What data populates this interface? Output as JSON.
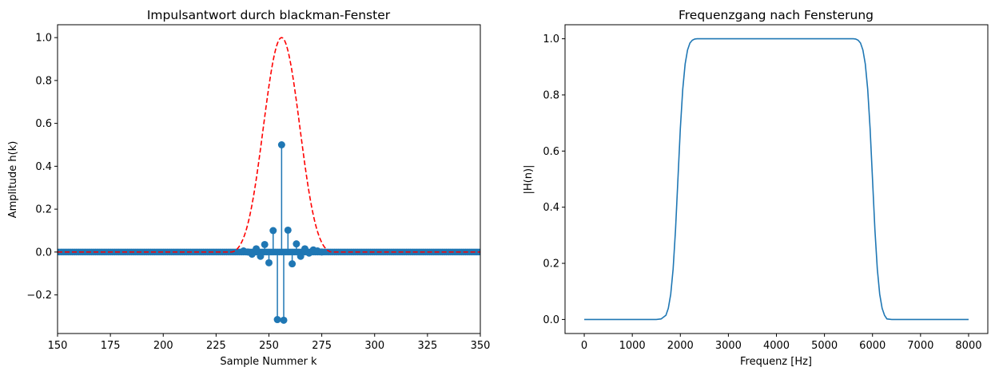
{
  "chart_data": [
    {
      "type": "stem",
      "title": "Impulsantwort durch blackman-Fenster",
      "xlabel": "Sample Nummer k",
      "ylabel": "Amplitude h(k)",
      "xlim": [
        150,
        350
      ],
      "ylim": [
        -0.38,
        1.06
      ],
      "xticks": [
        150,
        175,
        200,
        225,
        250,
        275,
        300,
        325,
        350
      ],
      "xtick_labels": [
        "150",
        "175",
        "200",
        "225",
        "250",
        "275",
        "300",
        "325",
        "350"
      ],
      "yticks": [
        -0.2,
        0.0,
        0.2,
        0.4,
        0.6,
        0.8,
        1.0
      ],
      "ytick_labels": [
        "−0.2",
        "0.0",
        "0.2",
        "0.4",
        "0.6",
        "0.8",
        "1.0"
      ],
      "grid": false,
      "stem_series": {
        "color": "#1f77b4",
        "points": [
          [
            238,
            0.005
          ],
          [
            240,
            0.0
          ],
          [
            242,
            -0.01
          ],
          [
            244,
            0.015
          ],
          [
            246,
            -0.02
          ],
          [
            248,
            0.035
          ],
          [
            250,
            -0.05
          ],
          [
            252,
            0.1
          ],
          [
            254,
            -0.315
          ],
          [
            256,
            0.5
          ],
          [
            257,
            -0.318
          ],
          [
            259,
            0.102
          ],
          [
            261,
            -0.055
          ],
          [
            263,
            0.038
          ],
          [
            265,
            -0.02
          ],
          [
            267,
            0.015
          ],
          [
            269,
            -0.005
          ],
          [
            271,
            0.01
          ],
          [
            273,
            0.005
          ],
          [
            275,
            0.0
          ]
        ],
        "dense_zero_markers": {
          "from": 150,
          "to": 350,
          "step": 1
        }
      },
      "window_series": {
        "name": "blackman",
        "style": "dashed",
        "color": "#ff0000",
        "center": 256,
        "half_width": 24,
        "extent": [
          150,
          350
        ]
      }
    },
    {
      "type": "line",
      "title": "Frequenzgang nach Fensterung",
      "xlabel": "Frequenz [Hz]",
      "ylabel": "|H(n)|",
      "xlim": [
        -400,
        8400
      ],
      "ylim": [
        -0.05,
        1.05
      ],
      "xticks": [
        0,
        1000,
        2000,
        3000,
        4000,
        5000,
        6000,
        7000,
        8000
      ],
      "xtick_labels": [
        "0",
        "1000",
        "2000",
        "3000",
        "4000",
        "5000",
        "6000",
        "7000",
        "8000"
      ],
      "yticks": [
        0.0,
        0.2,
        0.4,
        0.6,
        0.8,
        1.0
      ],
      "ytick_labels": [
        "0.0",
        "0.2",
        "0.4",
        "0.6",
        "0.8",
        "1.0"
      ],
      "grid": false,
      "series": [
        {
          "color": "#1f77b4",
          "x": [
            0,
            1500,
            1600,
            1700,
            1750,
            1800,
            1850,
            1900,
            1950,
            2000,
            2050,
            2100,
            2150,
            2200,
            2250,
            2300,
            2350,
            2400,
            2500,
            5500,
            5600,
            5650,
            5700,
            5750,
            5800,
            5850,
            5900,
            5950,
            6000,
            6050,
            6100,
            6150,
            6200,
            6250,
            6300,
            6400,
            6500,
            8000
          ],
          "y": [
            0.0,
            0.0,
            0.002,
            0.015,
            0.04,
            0.09,
            0.18,
            0.32,
            0.5,
            0.68,
            0.82,
            0.91,
            0.96,
            0.985,
            0.995,
            0.999,
            1.0,
            1.0,
            1.0,
            1.0,
            1.0,
            0.999,
            0.995,
            0.985,
            0.96,
            0.91,
            0.82,
            0.68,
            0.5,
            0.32,
            0.18,
            0.09,
            0.04,
            0.015,
            0.002,
            0.0,
            0.0,
            0.0
          ]
        }
      ]
    }
  ]
}
